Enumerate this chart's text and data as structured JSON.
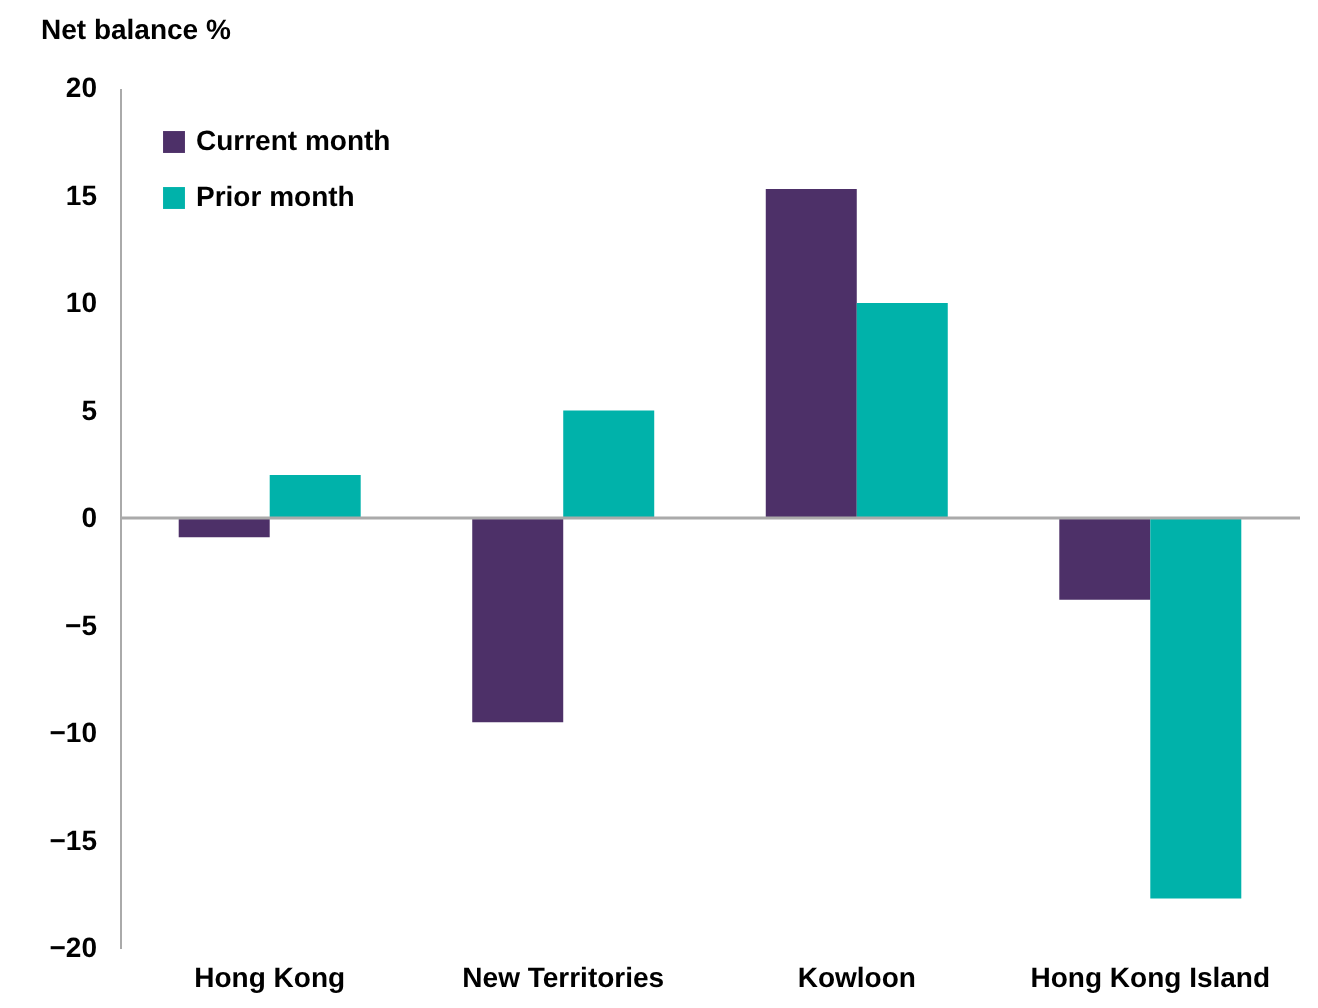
{
  "chart_data": {
    "type": "bar",
    "ylabel": "Net balance %",
    "categories": [
      "Hong Kong",
      "New Territories",
      "Kowloon",
      "Hong Kong Island"
    ],
    "series": [
      {
        "name": "Current month",
        "color": "#4d3068",
        "values": [
          -0.9,
          -9.5,
          15.3,
          -3.8
        ]
      },
      {
        "name": "Prior month",
        "color": "#00b2aa",
        "values": [
          2.0,
          5.0,
          10.0,
          -17.7
        ]
      }
    ],
    "ylim": [
      -20,
      20
    ],
    "yticks": [
      -20,
      -15,
      -10,
      -5,
      0,
      5,
      10,
      15,
      20
    ],
    "ref_lines": [
      {
        "axis": "y",
        "value": 0,
        "color": "#aaaaaa"
      }
    ],
    "legend": "top left"
  }
}
